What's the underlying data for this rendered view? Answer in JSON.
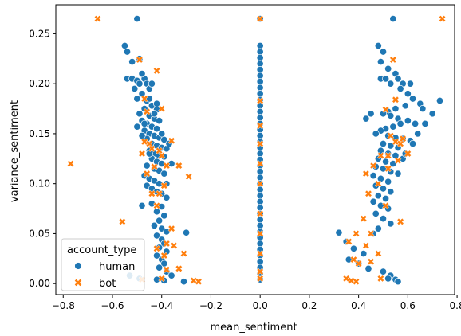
{
  "chart_data": {
    "type": "scatter",
    "xlabel": "mean_sentiment",
    "ylabel": "variance_sentiment",
    "xlim": [
      -0.83,
      0.79
    ],
    "ylim": [
      -0.011,
      0.279
    ],
    "xticks": [
      -0.8,
      -0.6,
      -0.4,
      -0.2,
      0.0,
      0.2,
      0.4,
      0.6,
      0.8
    ],
    "xtick_labels": [
      "−0.8",
      "−0.6",
      "−0.4",
      "−0.2",
      "0.0",
      "0.2",
      "0.4",
      "0.6",
      "0.8"
    ],
    "yticks": [
      0.0,
      0.05,
      0.1,
      0.15,
      0.2,
      0.25
    ],
    "ytick_labels": [
      "0.00",
      "0.05",
      "0.10",
      "0.15",
      "0.20",
      "0.25"
    ],
    "grid": false,
    "legend": {
      "title": "account_type",
      "placement": "lower-left"
    },
    "series": [
      {
        "name": "human",
        "marker": "circle",
        "color": "#1f77b4",
        "points": [
          [
            -0.5,
            0.265
          ],
          [
            -0.55,
            0.238
          ],
          [
            -0.54,
            0.232
          ],
          [
            -0.52,
            0.222
          ],
          [
            -0.49,
            0.225
          ],
          [
            -0.54,
            0.205
          ],
          [
            -0.52,
            0.205
          ],
          [
            -0.5,
            0.203
          ],
          [
            -0.49,
            0.2
          ],
          [
            -0.47,
            0.205
          ],
          [
            -0.46,
            0.2
          ],
          [
            -0.45,
            0.195
          ],
          [
            -0.48,
            0.19
          ],
          [
            -0.5,
            0.185
          ],
          [
            -0.46,
            0.183
          ],
          [
            -0.44,
            0.178
          ],
          [
            -0.42,
            0.174
          ],
          [
            -0.47,
            0.175
          ],
          [
            -0.49,
            0.17
          ],
          [
            -0.45,
            0.168
          ],
          [
            -0.43,
            0.165
          ],
          [
            -0.41,
            0.163
          ],
          [
            -0.48,
            0.163
          ],
          [
            -0.46,
            0.16
          ],
          [
            -0.44,
            0.157
          ],
          [
            -0.42,
            0.155
          ],
          [
            -0.5,
            0.157
          ],
          [
            -0.47,
            0.153
          ],
          [
            -0.45,
            0.15
          ],
          [
            -0.43,
            0.148
          ],
          [
            -0.41,
            0.146
          ],
          [
            -0.39,
            0.144
          ],
          [
            -0.46,
            0.145
          ],
          [
            -0.48,
            0.148
          ],
          [
            -0.44,
            0.14
          ],
          [
            -0.42,
            0.138
          ],
          [
            -0.4,
            0.136
          ],
          [
            -0.38,
            0.135
          ],
          [
            -0.45,
            0.133
          ],
          [
            -0.43,
            0.13
          ],
          [
            -0.41,
            0.128
          ],
          [
            -0.39,
            0.127
          ],
          [
            -0.44,
            0.125
          ],
          [
            -0.42,
            0.122
          ],
          [
            -0.4,
            0.12
          ],
          [
            -0.46,
            0.118
          ],
          [
            -0.43,
            0.115
          ],
          [
            -0.41,
            0.113
          ],
          [
            -0.39,
            0.11
          ],
          [
            -0.47,
            0.108
          ],
          [
            -0.45,
            0.105
          ],
          [
            -0.43,
            0.103
          ],
          [
            -0.41,
            0.1
          ],
          [
            -0.46,
            0.098
          ],
          [
            -0.44,
            0.095
          ],
          [
            -0.42,
            0.092
          ],
          [
            -0.4,
            0.09
          ],
          [
            -0.38,
            0.086
          ],
          [
            -0.48,
            0.078
          ],
          [
            -0.44,
            0.08
          ],
          [
            -0.4,
            0.077
          ],
          [
            -0.42,
            0.072
          ],
          [
            -0.39,
            0.068
          ],
          [
            -0.41,
            0.063
          ],
          [
            -0.43,
            0.058
          ],
          [
            -0.4,
            0.055
          ],
          [
            -0.38,
            0.052
          ],
          [
            -0.42,
            0.048
          ],
          [
            -0.4,
            0.044
          ],
          [
            -0.39,
            0.04
          ],
          [
            -0.41,
            0.036
          ],
          [
            -0.38,
            0.032
          ],
          [
            -0.42,
            0.028
          ],
          [
            -0.4,
            0.024
          ],
          [
            -0.39,
            0.02
          ],
          [
            -0.41,
            0.016
          ],
          [
            -0.38,
            0.012
          ],
          [
            -0.36,
            0.008
          ],
          [
            -0.42,
            0.004
          ],
          [
            -0.39,
            0.003
          ],
          [
            -0.3,
            0.051
          ],
          [
            -0.31,
            0.002
          ],
          [
            -0.49,
            0.005
          ],
          [
            -0.53,
            0.008
          ],
          [
            -0.47,
            0.16
          ],
          [
            -0.45,
            0.185
          ],
          [
            -0.51,
            0.195
          ],
          [
            -0.43,
            0.17
          ],
          [
            -0.4,
            0.15
          ],
          [
            -0.37,
            0.14
          ],
          [
            -0.36,
            0.12
          ],
          [
            -0.38,
            0.1
          ],
          [
            -0.45,
            0.13
          ],
          [
            -0.42,
            0.18
          ],
          [
            -0.44,
            0.2
          ],
          [
            -0.48,
            0.21
          ],
          [
            0.54,
            0.265
          ],
          [
            0.48,
            0.238
          ],
          [
            0.5,
            0.232
          ],
          [
            0.49,
            0.222
          ],
          [
            0.52,
            0.215
          ],
          [
            0.55,
            0.21
          ],
          [
            0.49,
            0.205
          ],
          [
            0.51,
            0.205
          ],
          [
            0.53,
            0.2
          ],
          [
            0.56,
            0.205
          ],
          [
            0.58,
            0.2
          ],
          [
            0.61,
            0.2
          ],
          [
            0.57,
            0.195
          ],
          [
            0.6,
            0.19
          ],
          [
            0.62,
            0.185
          ],
          [
            0.65,
            0.18
          ],
          [
            0.73,
            0.183
          ],
          [
            0.66,
            0.175
          ],
          [
            0.59,
            0.178
          ],
          [
            0.55,
            0.175
          ],
          [
            0.52,
            0.172
          ],
          [
            0.5,
            0.17
          ],
          [
            0.53,
            0.168
          ],
          [
            0.56,
            0.165
          ],
          [
            0.6,
            0.163
          ],
          [
            0.63,
            0.16
          ],
          [
            0.57,
            0.16
          ],
          [
            0.54,
            0.157
          ],
          [
            0.51,
            0.155
          ],
          [
            0.49,
            0.153
          ],
          [
            0.47,
            0.15
          ],
          [
            0.52,
            0.148
          ],
          [
            0.55,
            0.146
          ],
          [
            0.58,
            0.145
          ],
          [
            0.61,
            0.143
          ],
          [
            0.5,
            0.14
          ],
          [
            0.53,
            0.138
          ],
          [
            0.56,
            0.136
          ],
          [
            0.49,
            0.133
          ],
          [
            0.52,
            0.13
          ],
          [
            0.55,
            0.128
          ],
          [
            0.58,
            0.125
          ],
          [
            0.48,
            0.125
          ],
          [
            0.51,
            0.122
          ],
          [
            0.54,
            0.12
          ],
          [
            0.47,
            0.117
          ],
          [
            0.5,
            0.115
          ],
          [
            0.53,
            0.112
          ],
          [
            0.56,
            0.11
          ],
          [
            0.46,
            0.108
          ],
          [
            0.49,
            0.105
          ],
          [
            0.52,
            0.102
          ],
          [
            0.47,
            0.098
          ],
          [
            0.5,
            0.095
          ],
          [
            0.53,
            0.092
          ],
          [
            0.48,
            0.088
          ],
          [
            0.51,
            0.085
          ],
          [
            0.46,
            0.082
          ],
          [
            0.49,
            0.078
          ],
          [
            0.52,
            0.075
          ],
          [
            0.47,
            0.07
          ],
          [
            0.5,
            0.065
          ],
          [
            0.53,
            0.06
          ],
          [
            0.48,
            0.055
          ],
          [
            0.46,
            0.05
          ],
          [
            0.32,
            0.051
          ],
          [
            0.35,
            0.042
          ],
          [
            0.38,
            0.035
          ],
          [
            0.42,
            0.03
          ],
          [
            0.36,
            0.024
          ],
          [
            0.4,
            0.02
          ],
          [
            0.44,
            0.015
          ],
          [
            0.5,
            0.012
          ],
          [
            0.53,
            0.008
          ],
          [
            0.55,
            0.004
          ],
          [
            0.56,
            0.002
          ],
          [
            0.52,
            0.005
          ],
          [
            0.43,
            0.165
          ],
          [
            0.45,
            0.17
          ],
          [
            0.64,
            0.15
          ],
          [
            0.62,
            0.14
          ],
          [
            0.59,
            0.13
          ],
          [
            0.67,
            0.16
          ],
          [
            0.7,
            0.17
          ],
          [
            0,
            0.265
          ],
          [
            0,
            0.238
          ],
          [
            0,
            0.232
          ],
          [
            0,
            0.226
          ],
          [
            0,
            0.22
          ],
          [
            0,
            0.214
          ],
          [
            0,
            0.208
          ],
          [
            0,
            0.202
          ],
          [
            0,
            0.196
          ],
          [
            0,
            0.19
          ],
          [
            0,
            0.184
          ],
          [
            0,
            0.178
          ],
          [
            0,
            0.172
          ],
          [
            0,
            0.166
          ],
          [
            0,
            0.16
          ],
          [
            0,
            0.154
          ],
          [
            0,
            0.148
          ],
          [
            0,
            0.142
          ],
          [
            0,
            0.136
          ],
          [
            0,
            0.13
          ],
          [
            0,
            0.124
          ],
          [
            0,
            0.118
          ],
          [
            0,
            0.112
          ],
          [
            0,
            0.106
          ],
          [
            0,
            0.1
          ],
          [
            0,
            0.094
          ],
          [
            0,
            0.088
          ],
          [
            0,
            0.082
          ],
          [
            0,
            0.076
          ],
          [
            0,
            0.07
          ],
          [
            0,
            0.064
          ],
          [
            0,
            0.058
          ],
          [
            0,
            0.052
          ],
          [
            0,
            0.046
          ],
          [
            0,
            0.04
          ],
          [
            0,
            0.034
          ],
          [
            0,
            0.028
          ],
          [
            0,
            0.022
          ],
          [
            0,
            0.016
          ],
          [
            0,
            0.01
          ],
          [
            0,
            0.004
          ]
        ]
      },
      {
        "name": "bot",
        "marker": "x",
        "color": "#ff7f0e",
        "points": [
          [
            -0.66,
            0.265
          ],
          [
            -0.49,
            0.224
          ],
          [
            -0.42,
            0.213
          ],
          [
            -0.47,
            0.185
          ],
          [
            -0.46,
            0.172
          ],
          [
            -0.47,
            0.142
          ],
          [
            -0.45,
            0.14
          ],
          [
            -0.44,
            0.135
          ],
          [
            -0.48,
            0.13
          ],
          [
            -0.41,
            0.133
          ],
          [
            -0.4,
            0.128
          ],
          [
            -0.38,
            0.118
          ],
          [
            -0.36,
            0.143
          ],
          [
            -0.43,
            0.117
          ],
          [
            -0.46,
            0.11
          ],
          [
            -0.39,
            0.098
          ],
          [
            -0.41,
            0.09
          ],
          [
            -0.33,
            0.118
          ],
          [
            -0.29,
            0.107
          ],
          [
            -0.42,
            0.078
          ],
          [
            -0.77,
            0.12
          ],
          [
            -0.56,
            0.062
          ],
          [
            -0.36,
            0.055
          ],
          [
            -0.38,
            0.04
          ],
          [
            -0.42,
            0.035
          ],
          [
            -0.39,
            0.028
          ],
          [
            -0.35,
            0.038
          ],
          [
            -0.31,
            0.03
          ],
          [
            -0.38,
            0.014
          ],
          [
            -0.4,
            0.005
          ],
          [
            -0.33,
            0.015
          ],
          [
            -0.27,
            0.003
          ],
          [
            -0.25,
            0.002
          ],
          [
            -0.48,
            0.004
          ],
          [
            -0.44,
            0.09
          ],
          [
            -0.4,
            0.175
          ],
          [
            0.74,
            0.265
          ],
          [
            0.54,
            0.224
          ],
          [
            0.55,
            0.184
          ],
          [
            0.51,
            0.174
          ],
          [
            0.53,
            0.148
          ],
          [
            0.55,
            0.142
          ],
          [
            0.57,
            0.14
          ],
          [
            0.49,
            0.128
          ],
          [
            0.52,
            0.128
          ],
          [
            0.56,
            0.123
          ],
          [
            0.6,
            0.13
          ],
          [
            0.46,
            0.118
          ],
          [
            0.43,
            0.11
          ],
          [
            0.48,
            0.1
          ],
          [
            0.44,
            0.09
          ],
          [
            0.51,
            0.078
          ],
          [
            0.57,
            0.062
          ],
          [
            0.42,
            0.065
          ],
          [
            0.39,
            0.05
          ],
          [
            0.45,
            0.05
          ],
          [
            0.36,
            0.042
          ],
          [
            0.43,
            0.038
          ],
          [
            0.48,
            0.03
          ],
          [
            0.38,
            0.024
          ],
          [
            0.4,
            0.02
          ],
          [
            0.45,
            0.022
          ],
          [
            0.35,
            0.005
          ],
          [
            0.37,
            0.003
          ],
          [
            0.39,
            0.002
          ],
          [
            0.49,
            0.005
          ],
          [
            0.52,
            0.115
          ],
          [
            0.58,
            0.145
          ],
          [
            0,
            0.265
          ],
          [
            0,
            0.183
          ],
          [
            0,
            0.158
          ],
          [
            0,
            0.14
          ],
          [
            0,
            0.12
          ],
          [
            0,
            0.1
          ],
          [
            0,
            0.07
          ],
          [
            0,
            0.05
          ],
          [
            0,
            0.03
          ],
          [
            0,
            0.012
          ],
          [
            0,
            0.005
          ]
        ]
      }
    ]
  }
}
